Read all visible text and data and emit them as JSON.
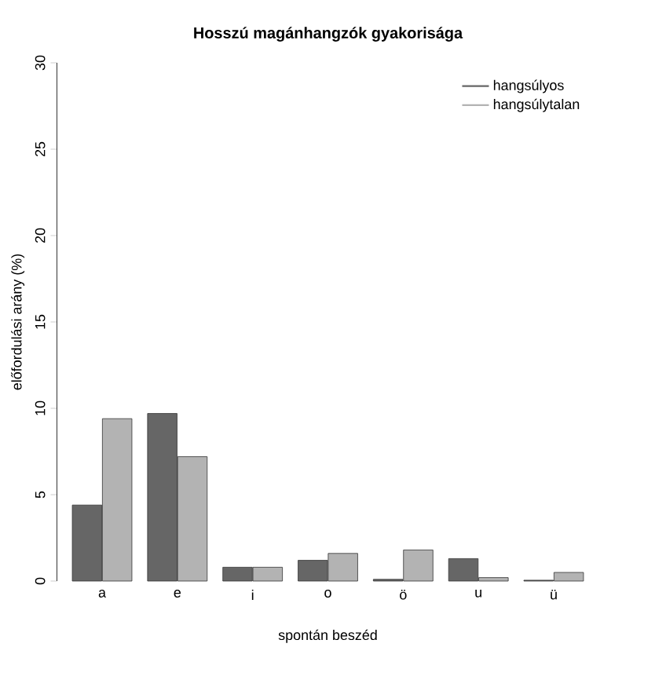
{
  "chart_data": {
    "type": "bar",
    "title": "Hosszú magánhangzók gyakorisága",
    "xlabel": "spontán beszéd",
    "ylabel": "előfordulási arány (%)",
    "categories": [
      "a",
      "e",
      "i",
      "o",
      "ö",
      "u",
      "ü"
    ],
    "series": [
      {
        "name": "hangsúlyos",
        "color": "#666666",
        "values": [
          4.4,
          9.7,
          0.8,
          1.2,
          0.1,
          1.3,
          0.05
        ]
      },
      {
        "name": "hangsúlytalan",
        "color": "#b3b3b3",
        "values": [
          9.4,
          7.2,
          0.8,
          1.6,
          1.8,
          0.2,
          0.5
        ]
      }
    ],
    "ylim": [
      0,
      30
    ],
    "yticks": [
      0,
      5,
      10,
      15,
      20,
      25,
      30
    ],
    "legend": "top right",
    "grid": false
  }
}
